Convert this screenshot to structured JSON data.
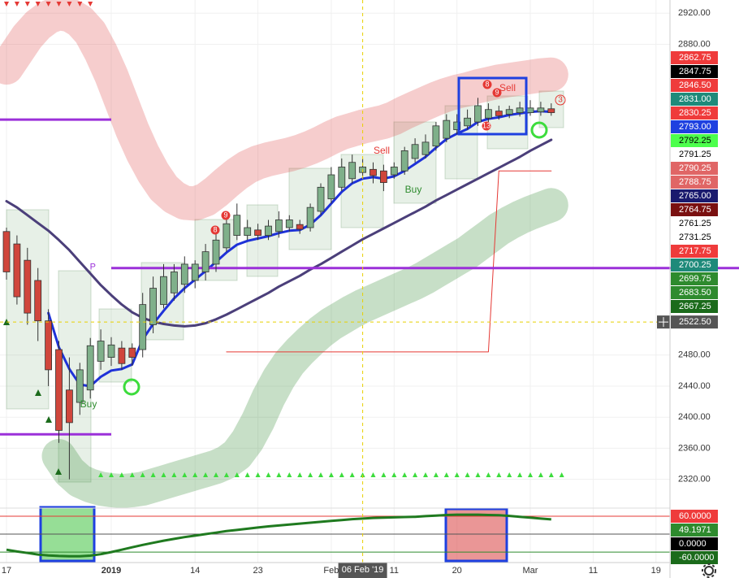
{
  "chart_data": {
    "type": "candlestick",
    "categories": [
      "17",
      null,
      null,
      null,
      null,
      null,
      null,
      null,
      null,
      null,
      "2019",
      null,
      null,
      null,
      null,
      null,
      null,
      null,
      "14",
      null,
      null,
      null,
      null,
      null,
      "23",
      null,
      null,
      null,
      null,
      null,
      null,
      "Feb",
      null,
      null,
      null,
      null,
      null,
      "11",
      null,
      null,
      null,
      null,
      null,
      "20",
      null,
      null,
      null,
      null,
      null,
      null,
      "Mar",
      null,
      null,
      null,
      null,
      null,
      "11",
      null,
      null,
      null,
      null,
      null,
      "19"
    ],
    "open": [
      2639,
      2623,
      2602,
      2576,
      2524,
      2487,
      2435,
      2419,
      2435,
      2472,
      2477,
      2489,
      2489,
      2487,
      2519,
      2545,
      2560,
      2571,
      2576,
      2587,
      2597,
      2618,
      2634,
      2634,
      2641,
      2634,
      2639,
      2644,
      2648,
      2644,
      2665,
      2681,
      2696,
      2707,
      2715,
      2719,
      2717,
      2712,
      2717,
      2733,
      2738,
      2749,
      2759,
      2770,
      2775,
      2780,
      2785,
      2794,
      2790,
      2792,
      2792,
      2793,
      2797,
      null,
      null,
      null,
      null,
      null,
      null,
      null,
      null,
      null,
      null
    ],
    "high": [
      2644,
      2634,
      2618,
      2592,
      2539,
      2498,
      2477,
      2470,
      2502,
      2513,
      2503,
      2498,
      2495,
      2560,
      2581,
      2597,
      2597,
      2607,
      2602,
      2623,
      2639,
      2660,
      2675,
      2654,
      2649,
      2654,
      2665,
      2660,
      2654,
      2675,
      2701,
      2722,
      2733,
      2738,
      2733,
      2728,
      2725,
      2728,
      2748,
      2759,
      2764,
      2780,
      2790,
      2790,
      2796,
      2811,
      2804,
      2801,
      2801,
      2806,
      2808,
      2806,
      2804,
      null,
      null,
      null,
      null,
      null,
      null,
      null,
      null,
      null,
      null
    ],
    "low": [
      2577,
      2545,
      2519,
      2498,
      2440,
      2367,
      2320,
      2403,
      2424,
      2461,
      2466,
      2461,
      2466,
      2477,
      2508,
      2540,
      2550,
      2560,
      2566,
      2576,
      2587,
      2613,
      2628,
      2628,
      2628,
      2628,
      2631,
      2639,
      2636,
      2639,
      2660,
      2675,
      2691,
      2701,
      2707,
      2701,
      2691,
      2707,
      2712,
      2728,
      2733,
      2743,
      2754,
      2764,
      2770,
      2775,
      2780,
      2783,
      2785,
      2787,
      2788,
      2788,
      2788,
      null,
      null,
      null,
      null,
      null,
      null,
      null,
      null,
      null,
      null
    ],
    "close": [
      2587,
      2555,
      2534,
      2524,
      2461,
      2383,
      2393,
      2461,
      2492,
      2498,
      2493,
      2469,
      2477,
      2545,
      2566,
      2581,
      2587,
      2597,
      2597,
      2613,
      2628,
      2649,
      2660,
      2644,
      2634,
      2646,
      2654,
      2654,
      2642,
      2670,
      2696,
      2712,
      2722,
      2728,
      2722,
      2711,
      2702,
      2722,
      2743,
      2751,
      2754,
      2775,
      2782,
      2780,
      2785,
      2801,
      2796,
      2788,
      2796,
      2798,
      2798,
      2798,
      2792,
      null,
      null,
      null,
      null,
      null,
      null,
      null,
      null,
      null,
      null
    ],
    "up_color": "#7fb08a",
    "down_color": "#d0463c",
    "overlays": [
      {
        "color": "rgba(226,90,90,0.3)",
        "width": 42,
        "values": [
          2850,
          2870,
          2890,
          2905,
          2915,
          2920,
          2918,
          2910,
          2895,
          2870,
          2840,
          2805,
          2770,
          2740,
          2715,
          2695,
          2683,
          2676,
          2675,
          2680,
          2690,
          2702,
          2713,
          2722,
          2728,
          2732,
          2735,
          2738,
          2742,
          2747,
          2753,
          2760,
          2766,
          2770,
          2774,
          2777,
          2780,
          2785,
          2792,
          2798,
          2804,
          2810,
          2815,
          2819,
          2822,
          2826,
          2829,
          2832,
          2834,
          2836,
          2838,
          2840,
          2841,
          null,
          null,
          null,
          null,
          null,
          null,
          null,
          null,
          null,
          null
        ]
      },
      {
        "color": "rgba(70,150,70,0.3)",
        "width": 42,
        "values": [
          null,
          null,
          null,
          null,
          null,
          2350,
          2330,
          2318,
          2312,
          2308,
          2306,
          2305,
          2306,
          2308,
          2312,
          2316,
          2320,
          2324,
          2328,
          2332,
          2336,
          2342,
          2352,
          2370,
          2395,
          2425,
          2450,
          2470,
          2485,
          2498,
          2510,
          2520,
          2528,
          2536,
          2543,
          2549,
          2555,
          2561,
          2567,
          2573,
          2580,
          2588,
          2596,
          2604,
          2612,
          2622,
          2632,
          2642,
          2650,
          2657,
          2663,
          2668,
          2673,
          null,
          null,
          null,
          null,
          null,
          null,
          null,
          null,
          null,
          null
        ]
      },
      {
        "color": "#4b3f7a",
        "width": 3,
        "values": [
          2678,
          2670,
          2660,
          2650,
          2640,
          2628,
          2615,
          2600,
          2585,
          2570,
          2557,
          2545,
          2535,
          2528,
          2523,
          2520,
          2518,
          2517,
          2518,
          2521,
          2526,
          2532,
          2539,
          2546,
          2553,
          2560,
          2568,
          2575,
          2582,
          2590,
          2597,
          2605,
          2613,
          2621,
          2629,
          2636,
          2643,
          2650,
          2657,
          2664,
          2671,
          2679,
          2686,
          2693,
          2700,
          2707,
          2714,
          2721,
          2728,
          2735,
          2743,
          2750,
          2757,
          null,
          null,
          null,
          null,
          null,
          null,
          null,
          null,
          null,
          null
        ]
      },
      {
        "color": "#1e32d8",
        "width": 3,
        "values": [
          null,
          null,
          null,
          null,
          2534,
          2490,
          2462,
          2442,
          2440,
          2452,
          2460,
          2462,
          2468,
          2500,
          2520,
          2537,
          2553,
          2566,
          2577,
          2588,
          2600,
          2612,
          2622,
          2627,
          2630,
          2633,
          2637,
          2640,
          2641,
          2648,
          2660,
          2675,
          2690,
          2701,
          2707,
          2709,
          2707,
          2710,
          2717,
          2726,
          2735,
          2747,
          2758,
          2765,
          2771,
          2780,
          2784,
          2786,
          2789,
          2791,
          2793,
          2794,
          2793,
          null,
          null,
          null,
          null,
          null,
          null,
          null,
          null,
          null,
          null
        ]
      },
      {
        "color": "#e53935",
        "width": 1,
        "values": [
          null,
          null,
          null,
          null,
          null,
          null,
          null,
          null,
          null,
          null,
          null,
          null,
          null,
          null,
          null,
          null,
          null,
          null,
          null,
          null,
          null,
          2484,
          2484,
          2484,
          2484,
          2484,
          2484,
          2484,
          2484,
          2484,
          2484,
          2484,
          2484,
          2484,
          2484,
          2484,
          2484,
          2484,
          2484,
          2484,
          2484,
          2484,
          2484,
          2484,
          2484,
          2484,
          2484,
          2717,
          2717,
          2717,
          2717,
          2717,
          2717,
          null,
          null,
          null,
          null,
          null,
          null,
          null,
          null,
          null,
          null
        ]
      }
    ],
    "levels": [
      {
        "value": 2783,
        "start": 0,
        "end": 10
      },
      {
        "value": 2592,
        "start": 10
      },
      {
        "value": 2378,
        "start": 0,
        "end": 10
      }
    ],
    "level_color": "#9b30d9",
    "level_label": "P",
    "ylim": [
      2283,
      2937
    ],
    "yticks": [
      {
        "value": 2920,
        "label": "2920.00"
      },
      {
        "value": 2880,
        "label": "2880.00"
      },
      {
        "value": 2480,
        "label": "2480.00"
      },
      {
        "value": 2440,
        "label": "2440.00"
      },
      {
        "value": 2400,
        "label": "2400.00"
      },
      {
        "value": 2360,
        "label": "2360.00"
      },
      {
        "value": 2320,
        "label": "2320.00"
      }
    ],
    "price_tags": [
      {
        "label": "2862.75",
        "color": "#ef3b3b",
        "text_color": "#ffffff"
      },
      {
        "label": "2847.75",
        "color": "#000000",
        "text_color": "#ffffff"
      },
      {
        "label": "2846.50",
        "color": "#ef3b3b",
        "text_color": "#ffffff"
      },
      {
        "label": "2831.00",
        "color": "#1e8a7a",
        "text_color": "#ffffff"
      },
      {
        "label": "2830.25",
        "color": "#ef3b3b",
        "text_color": "#ffffff"
      },
      {
        "label": "2793.00",
        "color": "#1e40e0",
        "text_color": "#ffffff"
      },
      {
        "label": "2792.25",
        "color": "#4cff4c",
        "text_color": "#000000"
      },
      {
        "label": "2791.25",
        "color": "#ffffff",
        "text_color": "#000000"
      },
      {
        "label": "2790.25",
        "color": "#e06666",
        "text_color": "#ffffff"
      },
      {
        "label": "2788.75",
        "color": "#e06666",
        "text_color": "#ffffff"
      },
      {
        "label": "2765.00",
        "color": "#1a1a6e",
        "text_color": "#ffffff"
      },
      {
        "label": "2764.75",
        "color": "#7a1010",
        "text_color": "#ffffff"
      },
      {
        "label": "2761.25",
        "color": "#ffffff",
        "text_color": "#000000"
      },
      {
        "label": "2731.25",
        "color": "#ffffff",
        "text_color": "#000000"
      },
      {
        "label": "2717.75",
        "color": "#ef3b3b",
        "text_color": "#ffffff"
      },
      {
        "label": "2700.25",
        "color": "#1e8a7a",
        "text_color": "#ffffff"
      },
      {
        "label": "2699.75",
        "color": "#2e8b2e",
        "text_color": "#ffffff"
      },
      {
        "label": "2683.50",
        "color": "#2e8b2e",
        "text_color": "#ffffff"
      },
      {
        "label": "2667.25",
        "color": "#1b6b1b",
        "text_color": "#ffffff"
      }
    ],
    "crosshair": {
      "price": 2522.5,
      "price_label": "2522.50",
      "index": 34,
      "date_label": "06 Feb '19"
    },
    "annotations": [
      "Sell",
      "Buy",
      "Buy",
      "Sell",
      "9",
      "8",
      "8",
      "9",
      "13",
      "3"
    ],
    "oscillator": {
      "color": "#1f7a1f",
      "ylim": [
        -95,
        87
      ],
      "levels": [
        {
          "value": 60,
          "color": "#e53935"
        },
        {
          "value": 0,
          "color": "#555555"
        },
        {
          "value": -60,
          "color": "#2e8b2e"
        }
      ],
      "values": [
        -52,
        -58,
        -63,
        -68,
        -71,
        -73,
        -74,
        -74,
        -72,
        -67,
        -60,
        -52,
        -44,
        -36,
        -29,
        -22,
        -16,
        -10,
        -5,
        0,
        5,
        10,
        14,
        18,
        22,
        26,
        29,
        32,
        35,
        38,
        41,
        44,
        47,
        50,
        52,
        54,
        55,
        56,
        57,
        58,
        60,
        62,
        64,
        65,
        65,
        65,
        64,
        63,
        61,
        58,
        55,
        52,
        49.1971,
        null,
        null,
        null,
        null,
        null,
        null,
        null,
        null,
        null,
        null
      ],
      "tags": [
        {
          "label": "60.0000",
          "color": "#ef3b3b"
        },
        {
          "label": "49.1971",
          "color": "#2e8b2e"
        },
        {
          "label": "0.0000",
          "color": "#000000"
        },
        {
          "label": "-60.0000",
          "color": "#1b6b1b"
        }
      ]
    }
  }
}
